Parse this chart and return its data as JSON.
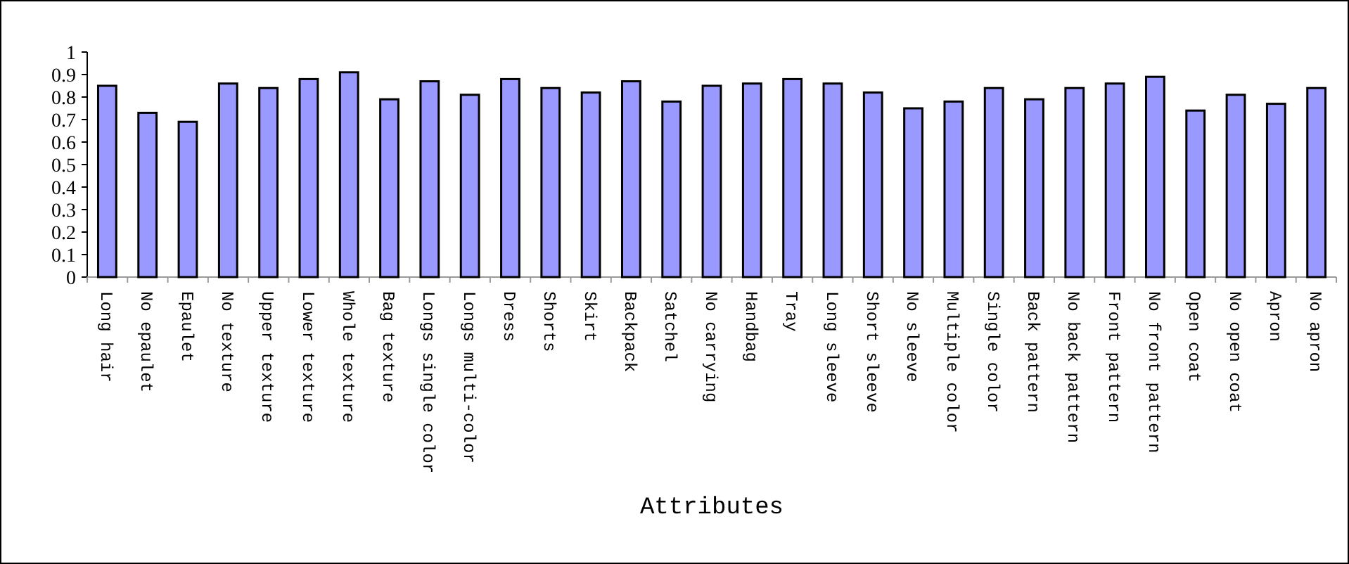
{
  "chart_data": {
    "type": "bar",
    "xlabel": "Attributes",
    "categories": [
      "Long hair",
      "No epaulet",
      "Epaulet",
      "No texture",
      "Upper texture",
      "Lower texture",
      "Whole texture",
      "Bag texture",
      "Longs single color",
      "Longs multi-color",
      "Dress",
      "Shorts",
      "Skirt",
      "Backpack",
      "Satchel",
      "No carrying",
      "Handbag",
      "Tray",
      "Long sleeve",
      "Short sleeve",
      "No sleeve",
      "Multiple color",
      "Single color",
      "Back pattern",
      "No back pattern",
      "Front pattern",
      "No front pattern",
      "Open coat",
      "No open coat",
      "Apron",
      "No apron"
    ],
    "values": [
      0.85,
      0.73,
      0.69,
      0.86,
      0.84,
      0.88,
      0.91,
      0.79,
      0.87,
      0.81,
      0.88,
      0.84,
      0.82,
      0.87,
      0.78,
      0.85,
      0.86,
      0.88,
      0.86,
      0.82,
      0.75,
      0.78,
      0.84,
      0.79,
      0.84,
      0.86,
      0.89,
      0.74,
      0.81,
      0.77,
      0.84
    ],
    "color": "#9999ff",
    "ylim": [
      0,
      1
    ],
    "yticks": [
      0,
      0.1,
      0.2,
      0.3,
      0.4,
      0.5,
      0.6,
      0.7,
      0.8,
      0.9,
      1
    ],
    "grid": false
  }
}
